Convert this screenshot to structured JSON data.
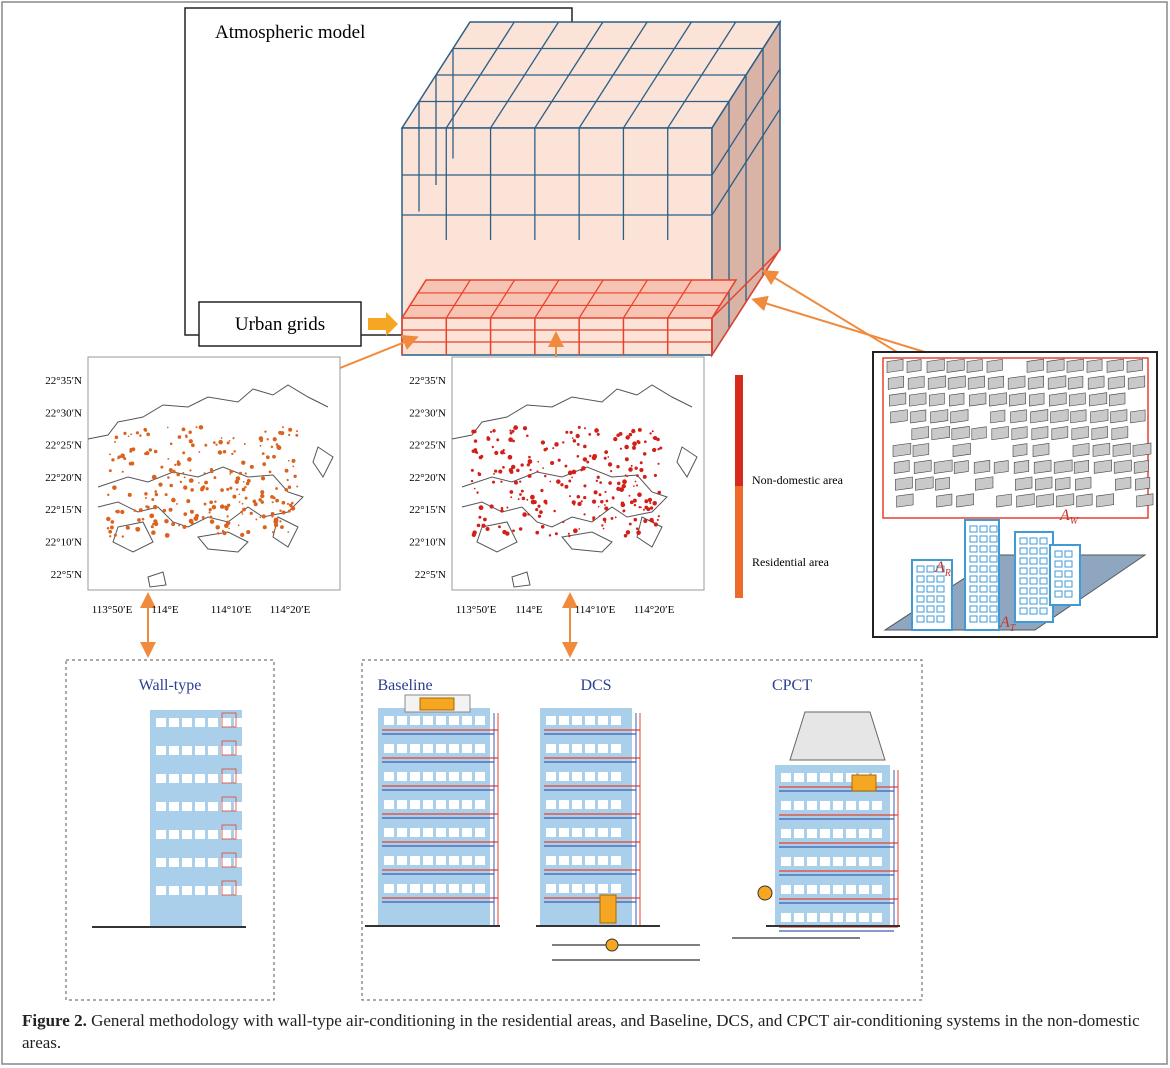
{
  "atmospheric_model": {
    "title": "Atmospheric model",
    "urban_grids": "Urban grids"
  },
  "maps": [
    {
      "lat_labels": [
        "22°35′N",
        "22°30′N",
        "22°25′N",
        "22°20′N",
        "22°15′N",
        "22°10′N",
        "22°5′N"
      ],
      "lon_labels": [
        "113°50′E",
        "114°E",
        "114°10′E",
        "114°20′E"
      ]
    },
    {
      "lat_labels": [
        "22°35′N",
        "22°30′N",
        "22°25′N",
        "22°20′N",
        "22°15′N",
        "22°10′N",
        "22°5′N"
      ],
      "lon_labels": [
        "113°50′E",
        "114°E",
        "114°10′E",
        "114°20′E"
      ]
    }
  ],
  "legend": {
    "items": [
      "Non-domestic area",
      "Residential area"
    ]
  },
  "building_labels": [
    {
      "base": "A",
      "sub": "R"
    },
    {
      "base": "A",
      "sub": "W"
    },
    {
      "base": "A",
      "sub": "T"
    }
  ],
  "systems": {
    "wall_type": "Wall-type",
    "baseline": "Baseline",
    "dcs": "DCS",
    "cpct": "CPCT"
  },
  "caption": {
    "label": "Figure 2.",
    "text": "General methodology with wall-type air-conditioning in the residential areas, and Baseline, DCS, and CPCT air-conditioning systems in the non-domestic areas."
  }
}
